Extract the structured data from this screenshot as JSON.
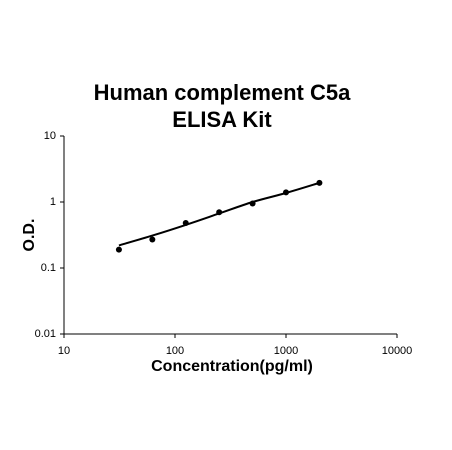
{
  "chart_data": {
    "type": "scatter",
    "title": [
      "Human complement C5a",
      "ELISA Kit"
    ],
    "x_label": "Concentration(pg/ml)",
    "y_label": "O.D.",
    "x_log": true,
    "y_log": true,
    "xlim": [
      10,
      10000
    ],
    "xticks": [
      10,
      100,
      1000,
      10000
    ],
    "ylim": [
      0.01,
      10
    ],
    "yticks": [
      0.01,
      0.1,
      1,
      10
    ],
    "points": {
      "color": "#000000",
      "x": [
        31.25,
        62.5,
        125,
        250,
        500,
        1000,
        2000
      ],
      "values": [
        0.19,
        0.27,
        0.48,
        0.7,
        0.95,
        1.4,
        1.95
      ]
    },
    "fit": {
      "color": "#000000",
      "x": [
        31.25,
        62.5,
        125,
        250,
        500,
        1000,
        2000
      ],
      "values": [
        0.22,
        0.31,
        0.45,
        0.67,
        1.0,
        1.37,
        1.95
      ]
    }
  }
}
